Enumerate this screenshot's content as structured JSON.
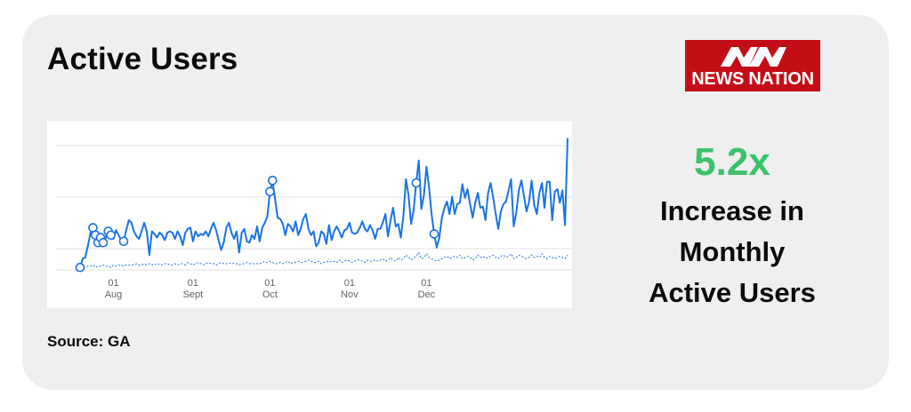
{
  "header": {
    "title": "Active Users"
  },
  "logo": {
    "text": "NEWS NATION",
    "alt": "NN",
    "color": "#c40e17"
  },
  "stat": {
    "value": "5.2x",
    "value_color": "#3cc26a",
    "lines": [
      "Increase in",
      "Monthly",
      "Active Users"
    ]
  },
  "footer": {
    "source": "Source: GA"
  },
  "chart_data": {
    "type": "line",
    "title": "",
    "xlabel": "",
    "ylabel": "",
    "grid": true,
    "x_ticks": [
      {
        "day": "01",
        "month": "Aug",
        "index": 13
      },
      {
        "day": "01",
        "month": "Sept",
        "index": 44
      },
      {
        "day": "01",
        "month": "Oct",
        "index": 74
      },
      {
        "day": "01",
        "month": "Nov",
        "index": 105
      },
      {
        "day": "01",
        "month": "Dec",
        "index": 135
      }
    ],
    "ylim": [
      0,
      100
    ],
    "series": [
      {
        "style": "solid",
        "color": "#1a73e8",
        "values": [
          2,
          9,
          10,
          19,
          29,
          34,
          28,
          22,
          26,
          22,
          26,
          31,
          28,
          25,
          32,
          28,
          24,
          23,
          32,
          40,
          38,
          31,
          27,
          25,
          31,
          38,
          31,
          12,
          31,
          29,
          26,
          30,
          28,
          24,
          30,
          31,
          30,
          25,
          31,
          27,
          20,
          30,
          33,
          34,
          23,
          31,
          27,
          29,
          28,
          31,
          27,
          33,
          38,
          32,
          24,
          16,
          22,
          34,
          38,
          30,
          25,
          31,
          14,
          30,
          33,
          23,
          22,
          28,
          25,
          35,
          23,
          34,
          38,
          43,
          63,
          72,
          57,
          42,
          41,
          37,
          28,
          37,
          35,
          31,
          39,
          28,
          33,
          41,
          45,
          33,
          28,
          31,
          19,
          22,
          31,
          29,
          21,
          36,
          24,
          31,
          35,
          31,
          26,
          32,
          33,
          38,
          30,
          29,
          30,
          34,
          39,
          33,
          31,
          36,
          32,
          25,
          33,
          33,
          38,
          45,
          27,
          40,
          50,
          35,
          37,
          26,
          43,
          73,
          60,
          37,
          48,
          70,
          88,
          49,
          60,
          83,
          66,
          45,
          29,
          18,
          26,
          42,
          50,
          55,
          45,
          59,
          45,
          53,
          54,
          69,
          58,
          65,
          53,
          42,
          54,
          62,
          50,
          51,
          40,
          62,
          70,
          58,
          45,
          33,
          47,
          53,
          55,
          64,
          73,
          35,
          46,
          64,
          72,
          59,
          47,
          55,
          72,
          52,
          45,
          62,
          70,
          50,
          71,
          71,
          40,
          63,
          65,
          54,
          64,
          36,
          106
        ]
      },
      {
        "style": "dashed",
        "color": "#1a73e8",
        "values": [
          3,
          2,
          2,
          3,
          3,
          4,
          2,
          3,
          3,
          4,
          3,
          3,
          2,
          4,
          3,
          4,
          4,
          3,
          4,
          4,
          4,
          4,
          5,
          4,
          4,
          5,
          4,
          5,
          4,
          5,
          4,
          5,
          4,
          5,
          5,
          4,
          4,
          5,
          4,
          5,
          5,
          4,
          6,
          5,
          4,
          5,
          6,
          5,
          4,
          5,
          6,
          5,
          5,
          4,
          5,
          6,
          5,
          5,
          5,
          6,
          5,
          5,
          4,
          5,
          5,
          6,
          5,
          5,
          5,
          5,
          5,
          6,
          7,
          6,
          7,
          6,
          5,
          5,
          6,
          5,
          6,
          7,
          5,
          6,
          6,
          7,
          6,
          6,
          7,
          8,
          7,
          6,
          6,
          7,
          5,
          6,
          7,
          6,
          7,
          7,
          6,
          8,
          6,
          7,
          8,
          7,
          6,
          7,
          8,
          8,
          7,
          6,
          8,
          7,
          7,
          8,
          7,
          8,
          9,
          7,
          8,
          10,
          8,
          7,
          10,
          8,
          9,
          12,
          10,
          8,
          10,
          11,
          14,
          9,
          10,
          13,
          10,
          9,
          8,
          7,
          8,
          9,
          10,
          11,
          9,
          10,
          11,
          10,
          12,
          9,
          10,
          11,
          10,
          8,
          9,
          12,
          10,
          11,
          9,
          10,
          11,
          12,
          10,
          9,
          11,
          12,
          10,
          11,
          13,
          9,
          10,
          12,
          11,
          10,
          9,
          10,
          12,
          10,
          11,
          10,
          13,
          10,
          9,
          11,
          10,
          9,
          10,
          11,
          10,
          9,
          12
        ]
      }
    ],
    "markers": [
      0,
      5,
      6,
      7,
      8,
      9,
      11,
      12,
      17,
      74,
      75,
      131,
      138
    ]
  }
}
